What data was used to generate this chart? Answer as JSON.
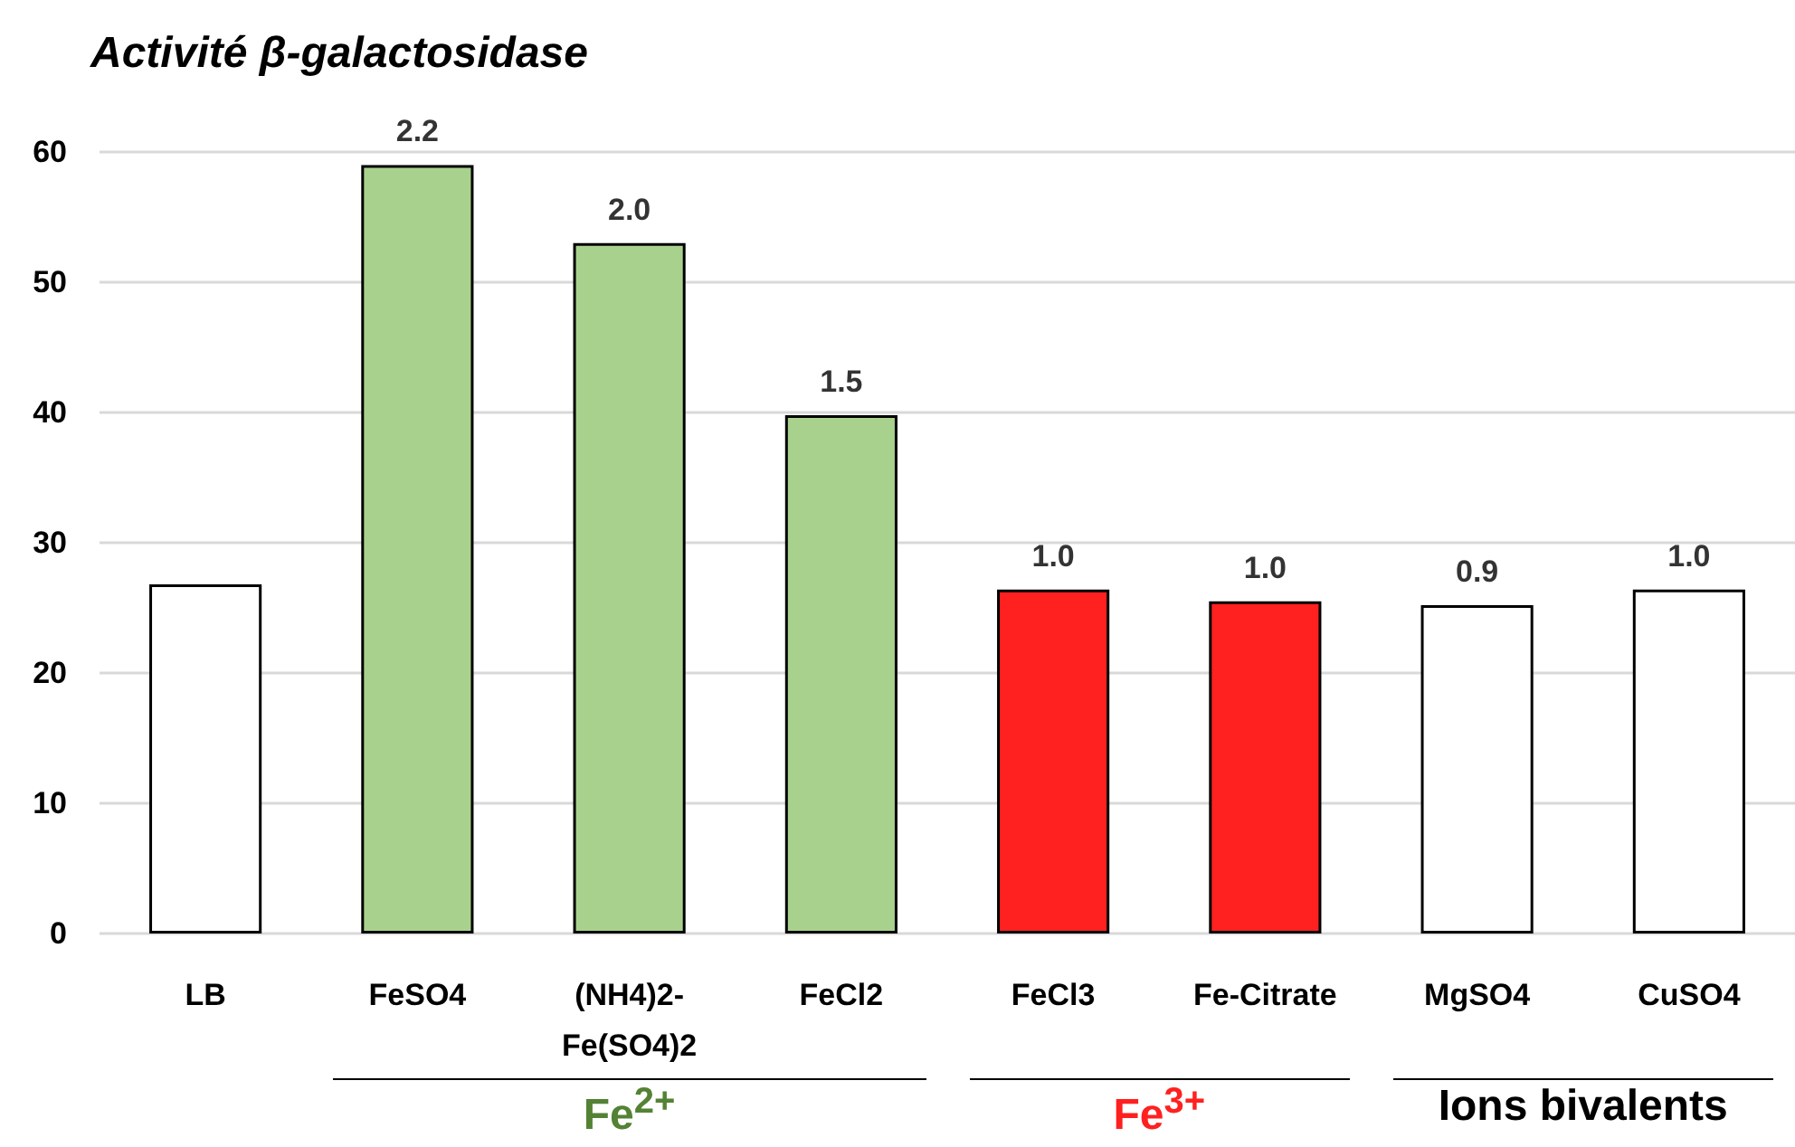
{
  "chart_data": {
    "type": "bar",
    "title": "Activité β-galactosidase",
    "categories": [
      "LB",
      "FeSO4",
      "(NH4)2-\nFe(SO4)2",
      "FeCl2",
      "FeCl3",
      "Fe-Citrate",
      "MgSO4",
      "CuSO4"
    ],
    "values": [
      26.8,
      59,
      53,
      39.8,
      26.4,
      25.5,
      25.2,
      26.4
    ],
    "colors": [
      "#ffffff",
      "#a9d18e",
      "#a9d18e",
      "#a9d18e",
      "#ff2020",
      "#ff2020",
      "#ffffff",
      "#ffffff"
    ],
    "ylim": [
      0,
      60
    ],
    "yticks": [
      0,
      10,
      20,
      30,
      40,
      50,
      60
    ],
    "grid": "y",
    "annotations": [
      "Fe$^{2+}$",
      "Fe$^{3+}$",
      "Ions bivalents",
      {
        "text": "2.2",
        "x": "FeSO4",
        "y": 59
      },
      {
        "text": "2.0",
        "x": "(NH4)2-\nFe(SO4)2",
        "y": 53
      },
      {
        "text": "1.5",
        "x": "FeCl2",
        "y": 39.8
      },
      {
        "text": "1.0",
        "x": "FeCl3",
        "y": 26.4
      },
      {
        "text": "1.0",
        "x": "Fe-Citrate",
        "y": 25.5
      },
      {
        "text": "0.9",
        "x": "MgSO4",
        "y": 25.2
      },
      {
        "text": "1.0",
        "x": "CuSO4",
        "y": 26.4
      }
    ]
  }
}
